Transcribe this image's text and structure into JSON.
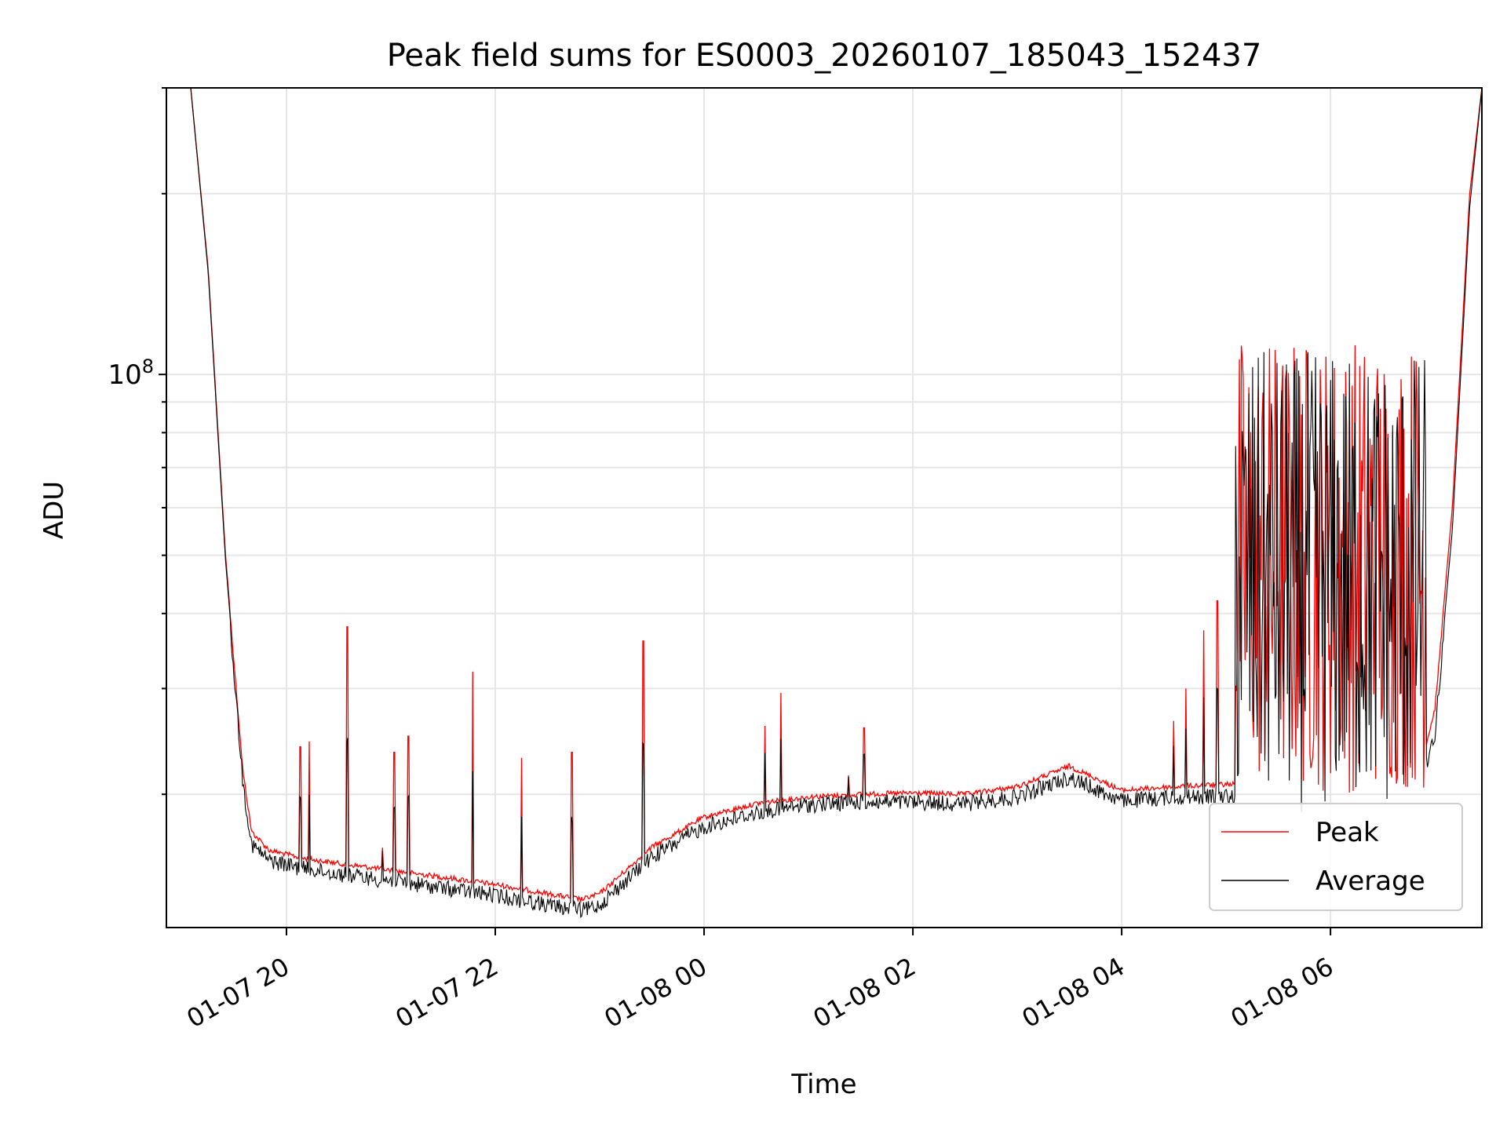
{
  "chart_data": {
    "type": "line",
    "title": "Peak field sums for ES0003_20260107_185043_152437",
    "xlabel": "Time",
    "ylabel": "ADU",
    "y_scale": "log",
    "y_major_tick_base": "10",
    "y_major_tick_exponent": "8",
    "ylim": [
      12000000,
      300000000
    ],
    "xlim": [
      "2026-01-07 18:51",
      "2026-01-08 07:27"
    ],
    "x_ticks": [
      {
        "t": "2026-01-07 20:00",
        "label": "01-07 20"
      },
      {
        "t": "2026-01-07 22:00",
        "label": "01-07 22"
      },
      {
        "t": "2026-01-08 00:00",
        "label": "01-08 00"
      },
      {
        "t": "2026-01-08 02:00",
        "label": "01-08 02"
      },
      {
        "t": "2026-01-08 04:00",
        "label": "01-08 04"
      },
      {
        "t": "2026-01-08 06:00",
        "label": "01-08 06"
      }
    ],
    "grid": true,
    "legend_position": "lower-right",
    "series": [
      {
        "name": "Peak",
        "color": "#ff0000",
        "x": [
          "2026-01-07 18:51",
          "2026-01-07 19:05",
          "2026-01-07 19:15",
          "2026-01-07 19:25",
          "2026-01-07 19:35",
          "2026-01-07 19:40",
          "2026-01-07 19:50",
          "2026-01-07 20:10",
          "2026-01-07 20:30",
          "2026-01-07 21:00",
          "2026-01-07 21:30",
          "2026-01-07 22:00",
          "2026-01-07 22:30",
          "2026-01-07 22:50",
          "2026-01-07 23:00",
          "2026-01-07 23:30",
          "2026-01-08 00:00",
          "2026-01-08 00:30",
          "2026-01-08 01:00",
          "2026-01-08 01:30",
          "2026-01-08 02:00",
          "2026-01-08 02:30",
          "2026-01-08 03:00",
          "2026-01-08 03:30",
          "2026-01-08 04:00",
          "2026-01-08 04:30",
          "2026-01-08 05:00",
          "2026-01-08 05:10",
          "2026-01-08 05:30",
          "2026-01-08 06:00",
          "2026-01-08 06:30",
          "2026-01-08 06:50",
          "2026-01-08 07:00",
          "2026-01-08 07:10",
          "2026-01-08 07:20",
          "2026-01-08 07:27"
        ],
        "y": [
          300000000,
          300000000,
          150000000,
          50000000,
          22000000,
          17500000,
          16300000,
          15800000,
          15500000,
          15100000,
          14700000,
          14300000,
          13800000,
          13500000,
          13800000,
          16500000,
          18500000,
          19500000,
          20000000,
          20200000,
          20300000,
          20200000,
          20800000,
          22500000,
          20500000,
          20800000,
          21000000,
          21000000,
          21000000,
          21000000,
          21000000,
          21000000,
          28000000,
          60000000,
          200000000,
          300000000
        ]
      },
      {
        "name": "Average",
        "color": "#000000",
        "x": [
          "2026-01-07 18:51",
          "2026-01-07 19:05",
          "2026-01-07 19:15",
          "2026-01-07 19:25",
          "2026-01-07 19:35",
          "2026-01-07 19:40",
          "2026-01-07 19:50",
          "2026-01-07 20:10",
          "2026-01-07 20:30",
          "2026-01-07 21:00",
          "2026-01-07 21:30",
          "2026-01-07 22:00",
          "2026-01-07 22:30",
          "2026-01-07 22:50",
          "2026-01-07 23:00",
          "2026-01-07 23:30",
          "2026-01-08 00:00",
          "2026-01-08 00:30",
          "2026-01-08 01:00",
          "2026-01-08 01:30",
          "2026-01-08 02:00",
          "2026-01-08 02:30",
          "2026-01-08 03:00",
          "2026-01-08 03:30",
          "2026-01-08 04:00",
          "2026-01-08 04:30",
          "2026-01-08 05:00",
          "2026-01-08 05:10",
          "2026-01-08 05:30",
          "2026-01-08 06:00",
          "2026-01-08 06:30",
          "2026-01-08 06:50",
          "2026-01-08 07:00",
          "2026-01-08 07:10",
          "2026-01-08 07:20",
          "2026-01-08 07:27"
        ],
        "y": [
          300000000,
          300000000,
          148000000,
          49000000,
          21500000,
          17000000,
          16000000,
          15500000,
          15200000,
          14800000,
          14400000,
          14000000,
          13500000,
          13200000,
          13500000,
          16200000,
          18200000,
          19200000,
          19800000,
          20000000,
          20000000,
          19900000,
          20400000,
          22000000,
          20100000,
          20400000,
          20500000,
          20500000,
          20500000,
          20500000,
          20500000,
          20500000,
          26000000,
          55000000,
          190000000,
          300000000
        ]
      }
    ],
    "spikes": [
      {
        "t": "2026-01-07 20:08",
        "y": 24000000
      },
      {
        "t": "2026-01-07 20:13",
        "y": 24500000
      },
      {
        "t": "2026-01-07 20:35",
        "y": 38000000
      },
      {
        "t": "2026-01-07 20:55",
        "y": 16300000
      },
      {
        "t": "2026-01-07 21:02",
        "y": 23500000
      },
      {
        "t": "2026-01-07 21:10",
        "y": 25000000
      },
      {
        "t": "2026-01-07 21:47",
        "y": 32000000
      },
      {
        "t": "2026-01-07 22:15",
        "y": 23000000
      },
      {
        "t": "2026-01-07 22:44",
        "y": 23500000
      },
      {
        "t": "2026-01-07 23:25",
        "y": 36000000
      },
      {
        "t": "2026-01-08 00:35",
        "y": 26000000
      },
      {
        "t": "2026-01-08 00:44",
        "y": 29500000
      },
      {
        "t": "2026-01-08 01:23",
        "y": 21500000
      },
      {
        "t": "2026-01-08 01:32",
        "y": 25800000
      },
      {
        "t": "2026-01-08 04:30",
        "y": 26500000
      },
      {
        "t": "2026-01-08 04:37",
        "y": 30000000
      },
      {
        "t": "2026-01-08 04:47",
        "y": 37500000
      },
      {
        "t": "2026-01-08 04:55",
        "y": 42000000
      }
    ],
    "noisy_region": {
      "start": "2026-01-08 05:05",
      "end": "2026-01-08 06:55",
      "ymin": 20000000,
      "ymax": 118000000
    }
  }
}
